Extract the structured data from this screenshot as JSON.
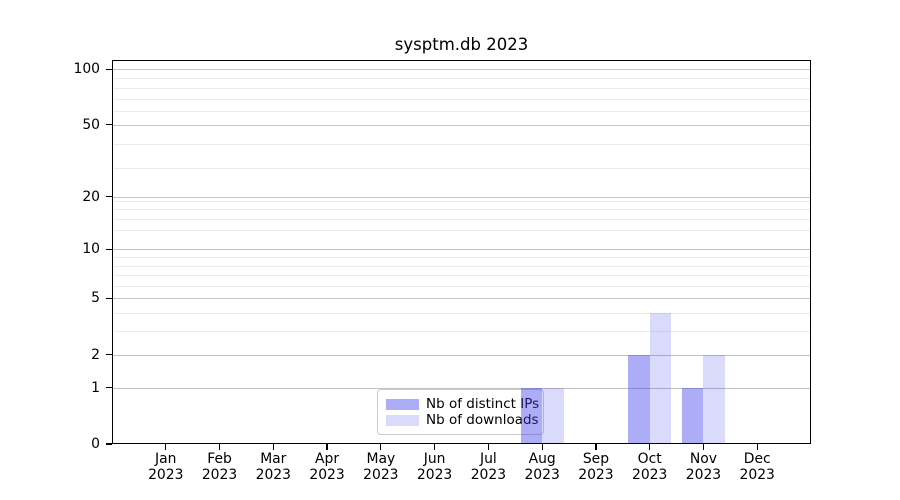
{
  "chart_data": {
    "type": "bar",
    "title": "sysptm.db 2023",
    "categories": [
      "Jan 2023",
      "Feb 2023",
      "Mar 2023",
      "Apr 2023",
      "May 2023",
      "Jun 2023",
      "Jul 2023",
      "Aug 2023",
      "Sep 2023",
      "Oct 2023",
      "Nov 2023",
      "Dec 2023"
    ],
    "series": [
      {
        "name": "Nb of distinct IPs",
        "color": "rgba(60,60,235,0.42)",
        "values": [
          0,
          0,
          0,
          0,
          0,
          0,
          0,
          1,
          0,
          2,
          1,
          0
        ]
      },
      {
        "name": "Nb of downloads",
        "color": "rgba(60,60,235,0.19)",
        "values": [
          0,
          0,
          0,
          0,
          0,
          0,
          0,
          1,
          0,
          4,
          2,
          0
        ]
      }
    ],
    "y_scale": "log1p",
    "y_ticks": [
      0,
      1,
      2,
      5,
      10,
      20,
      50,
      100
    ],
    "y_minor_ticks": [
      3,
      4,
      6,
      7,
      8,
      9,
      13,
      15,
      17,
      19,
      29,
      39,
      59,
      69,
      79,
      89
    ],
    "ylim": [
      0,
      112
    ],
    "xlabel": "",
    "ylabel": "",
    "grid": "both",
    "legend_position": "lower center",
    "colors": {
      "grid_major": "#c2c2c2",
      "grid_minor": "#ebebeb",
      "axis": "#000000"
    }
  }
}
